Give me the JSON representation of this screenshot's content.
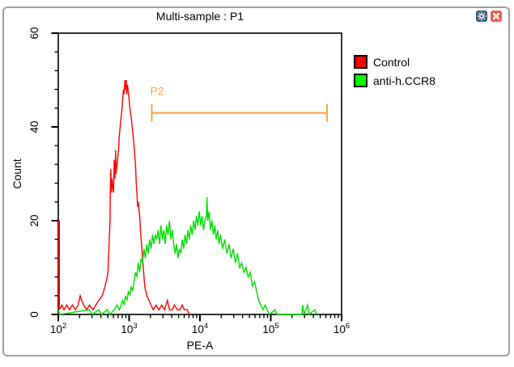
{
  "window": {
    "title": "Multi-sample : P1",
    "buttons": [
      {
        "name": "settings",
        "icon": "gear-icon"
      },
      {
        "name": "close",
        "icon": "close-icon"
      }
    ]
  },
  "legend": {
    "items": [
      {
        "label": "Control",
        "color": "#ff0000"
      },
      {
        "label": "anti-h.CCR8",
        "color": "#00ff00"
      }
    ]
  },
  "colors": {
    "control_curve": "#ff0000",
    "antibody_curve": "#00dd00",
    "gate": "#ffa040",
    "axis": "#000000",
    "window_border": "#9e9e9e",
    "settings_icon_bg": "#3d5a78",
    "close_icon_bg": "#ee5f4c"
  },
  "chart_data": {
    "type": "line",
    "subtype": "flow-cytometry-histogram-overlay",
    "title": "Multi-sample : P1",
    "xlabel": "PE-A",
    "ylabel": "Count",
    "x_scale": "log10",
    "x_range_log": [
      2,
      6
    ],
    "x_tick_exponents": [
      2,
      3,
      4,
      5,
      6
    ],
    "x_minor_multiples": [
      2,
      3,
      4,
      5,
      6,
      7,
      8,
      9
    ],
    "y_range": [
      0,
      60
    ],
    "y_major_ticks": [
      0,
      20,
      40,
      60
    ],
    "y_minor_step": 4,
    "grid": false,
    "legend_position": "outside-top-right",
    "gate": {
      "label": "P2",
      "color": "#ffa040",
      "count_level": 43,
      "x_log_from": 3.32,
      "x_log_to": 5.795
    },
    "series": [
      {
        "name": "Control",
        "color": "#ff0000",
        "points_log_count": [
          [
            2.0,
            0
          ],
          [
            2.0,
            20
          ],
          [
            2.015,
            20
          ],
          [
            2.015,
            1
          ],
          [
            2.05,
            2
          ],
          [
            2.08,
            1
          ],
          [
            2.12,
            2
          ],
          [
            2.16,
            1
          ],
          [
            2.2,
            2
          ],
          [
            2.24,
            1
          ],
          [
            2.28,
            2
          ],
          [
            2.31,
            4
          ],
          [
            2.33,
            3
          ],
          [
            2.36,
            2
          ],
          [
            2.4,
            1
          ],
          [
            2.44,
            2
          ],
          [
            2.49,
            1
          ],
          [
            2.53,
            2
          ],
          [
            2.57,
            3
          ],
          [
            2.62,
            4
          ],
          [
            2.66,
            6
          ],
          [
            2.69,
            8
          ],
          [
            2.7,
            9
          ],
          [
            2.71,
            12
          ],
          [
            2.73,
            20
          ],
          [
            2.735,
            26
          ],
          [
            2.74,
            31
          ],
          [
            2.75,
            26
          ],
          [
            2.76,
            29
          ],
          [
            2.77,
            27
          ],
          [
            2.78,
            26
          ],
          [
            2.79,
            33
          ],
          [
            2.8,
            29
          ],
          [
            2.81,
            35
          ],
          [
            2.815,
            30
          ],
          [
            2.83,
            32
          ],
          [
            2.85,
            35
          ],
          [
            2.86,
            38
          ],
          [
            2.88,
            41
          ],
          [
            2.9,
            44
          ],
          [
            2.91,
            46
          ],
          [
            2.92,
            48
          ],
          [
            2.93,
            47
          ],
          [
            2.94,
            50
          ],
          [
            2.95,
            48
          ],
          [
            2.96,
            50
          ],
          [
            2.965,
            47
          ],
          [
            2.975,
            49
          ],
          [
            2.985,
            48
          ],
          [
            2.99,
            47
          ],
          [
            3.0,
            46
          ],
          [
            3.01,
            44
          ],
          [
            3.03,
            42
          ],
          [
            3.05,
            39
          ],
          [
            3.07,
            36
          ],
          [
            3.08,
            34
          ],
          [
            3.09,
            32
          ],
          [
            3.1,
            28
          ],
          [
            3.11,
            26
          ],
          [
            3.12,
            23
          ],
          [
            3.13,
            24
          ],
          [
            3.14,
            22
          ],
          [
            3.15,
            21
          ],
          [
            3.16,
            18
          ],
          [
            3.18,
            14
          ],
          [
            3.2,
            10
          ],
          [
            3.22,
            6
          ],
          [
            3.25,
            4
          ],
          [
            3.28,
            3
          ],
          [
            3.31,
            2
          ],
          [
            3.34,
            1
          ],
          [
            3.38,
            2
          ],
          [
            3.42,
            1
          ],
          [
            3.46,
            2
          ],
          [
            3.5,
            1
          ],
          [
            3.54,
            3
          ],
          [
            3.57,
            1
          ],
          [
            3.61,
            1
          ],
          [
            3.64,
            2
          ],
          [
            3.68,
            1
          ],
          [
            3.72,
            1
          ],
          [
            3.75,
            2
          ],
          [
            3.78,
            1
          ],
          [
            3.82,
            1
          ],
          [
            3.85,
            0
          ]
        ]
      },
      {
        "name": "anti-h.CCR8",
        "color": "#00dd00",
        "points_log_count": [
          [
            2.0,
            1
          ],
          [
            2.02,
            0
          ],
          [
            2.44,
            1
          ],
          [
            2.48,
            0
          ],
          [
            2.57,
            1
          ],
          [
            2.61,
            0
          ],
          [
            2.69,
            1
          ],
          [
            2.73,
            0
          ],
          [
            2.79,
            1
          ],
          [
            2.83,
            2
          ],
          [
            2.86,
            1
          ],
          [
            2.89,
            2
          ],
          [
            2.91,
            3
          ],
          [
            2.93,
            2
          ],
          [
            2.95,
            4
          ],
          [
            2.97,
            3
          ],
          [
            2.99,
            5
          ],
          [
            3.01,
            4
          ],
          [
            3.03,
            6
          ],
          [
            3.05,
            5
          ],
          [
            3.07,
            7
          ],
          [
            3.09,
            9
          ],
          [
            3.11,
            8
          ],
          [
            3.13,
            11
          ],
          [
            3.15,
            9
          ],
          [
            3.17,
            12
          ],
          [
            3.19,
            11
          ],
          [
            3.21,
            14
          ],
          [
            3.23,
            12
          ],
          [
            3.25,
            15
          ],
          [
            3.27,
            13
          ],
          [
            3.29,
            16
          ],
          [
            3.31,
            14
          ],
          [
            3.33,
            17
          ],
          [
            3.35,
            15
          ],
          [
            3.37,
            17
          ],
          [
            3.39,
            16
          ],
          [
            3.41,
            18
          ],
          [
            3.43,
            15
          ],
          [
            3.45,
            19
          ],
          [
            3.47,
            16
          ],
          [
            3.49,
            18
          ],
          [
            3.51,
            15
          ],
          [
            3.53,
            19
          ],
          [
            3.55,
            17
          ],
          [
            3.57,
            20
          ],
          [
            3.59,
            16
          ],
          [
            3.61,
            18
          ],
          [
            3.63,
            15
          ],
          [
            3.65,
            13
          ],
          [
            3.67,
            15
          ],
          [
            3.69,
            12
          ],
          [
            3.71,
            14
          ],
          [
            3.73,
            13
          ],
          [
            3.75,
            16
          ],
          [
            3.77,
            14
          ],
          [
            3.79,
            17
          ],
          [
            3.81,
            15
          ],
          [
            3.83,
            18
          ],
          [
            3.85,
            16
          ],
          [
            3.87,
            19
          ],
          [
            3.89,
            17
          ],
          [
            3.91,
            20
          ],
          [
            3.93,
            18
          ],
          [
            3.95,
            21
          ],
          [
            3.97,
            19
          ],
          [
            3.99,
            22
          ],
          [
            4.01,
            19
          ],
          [
            4.03,
            21
          ],
          [
            4.05,
            18
          ],
          [
            4.07,
            20
          ],
          [
            4.09,
            21
          ],
          [
            4.1,
            25
          ],
          [
            4.11,
            20
          ],
          [
            4.13,
            22
          ],
          [
            4.15,
            18
          ],
          [
            4.17,
            20
          ],
          [
            4.19,
            17
          ],
          [
            4.21,
            19
          ],
          [
            4.23,
            16
          ],
          [
            4.25,
            18
          ],
          [
            4.27,
            15
          ],
          [
            4.29,
            17
          ],
          [
            4.32,
            14
          ],
          [
            4.35,
            16
          ],
          [
            4.38,
            13
          ],
          [
            4.41,
            15
          ],
          [
            4.44,
            12
          ],
          [
            4.47,
            14
          ],
          [
            4.5,
            11
          ],
          [
            4.53,
            13
          ],
          [
            4.56,
            10
          ],
          [
            4.59,
            11
          ],
          [
            4.62,
            9
          ],
          [
            4.65,
            10
          ],
          [
            4.68,
            8
          ],
          [
            4.71,
            9
          ],
          [
            4.74,
            6
          ],
          [
            4.77,
            7
          ],
          [
            4.8,
            5
          ],
          [
            4.83,
            3
          ],
          [
            4.86,
            2
          ],
          [
            4.89,
            1
          ],
          [
            4.92,
            2
          ],
          [
            4.95,
            1
          ],
          [
            4.98,
            0
          ],
          [
            5.06,
            1
          ],
          [
            5.09,
            0
          ],
          [
            5.44,
            0
          ],
          [
            5.45,
            2
          ],
          [
            5.47,
            0
          ],
          [
            5.52,
            2
          ],
          [
            5.54,
            0
          ],
          [
            5.62,
            1
          ],
          [
            5.65,
            0
          ]
        ]
      }
    ]
  }
}
